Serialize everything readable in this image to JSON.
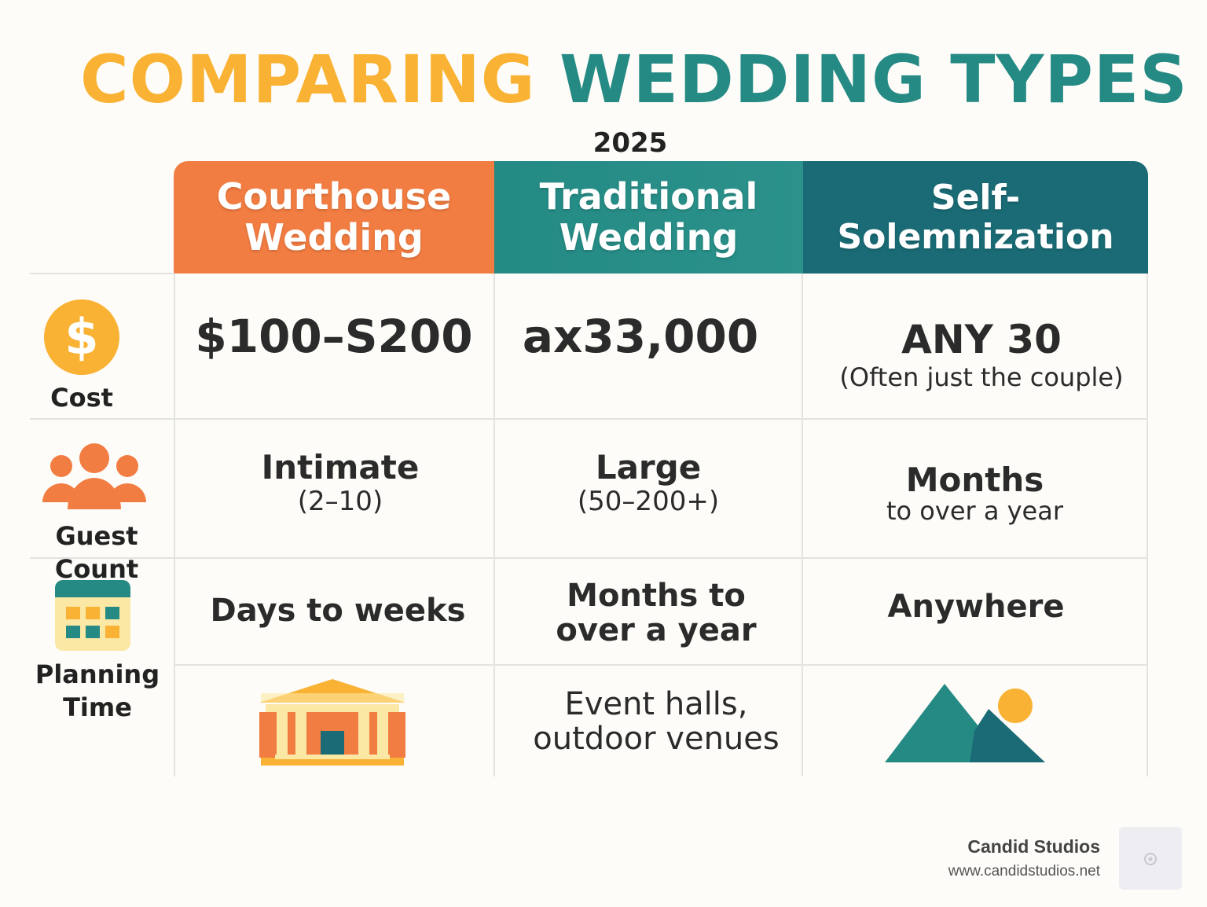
{
  "title": {
    "part1": "COMPARING",
    "part2": "WEDDING TYPES"
  },
  "year": "2025",
  "columns": [
    {
      "label_line1": "Courthouse",
      "label_line2": "Wedding"
    },
    {
      "label_line1": "Traditional",
      "label_line2": "Wedding"
    },
    {
      "label_line1": "Self-Solemnization",
      "label_line2": ""
    }
  ],
  "rows": {
    "cost": {
      "label": "Cost",
      "courthouse": "$100–S200",
      "traditional": "ax33,000",
      "self_main": "ANY 30",
      "self_sub": "(Often just the couple)"
    },
    "guests": {
      "label": "Guest Count",
      "courthouse_main": "Intimate",
      "courthouse_sub": "(2–10)",
      "traditional_main": "Large",
      "traditional_sub": "(50–200+)",
      "self_main": "Months",
      "self_sub": "to over a year"
    },
    "planning": {
      "label_line1": "Planning",
      "label_line2": "Time",
      "courthouse": "Days to weeks",
      "traditional_line1": "Months to",
      "traditional_line2": "over a year",
      "self": "Anywhere"
    },
    "venue": {
      "traditional_line1": "Event halls,",
      "traditional_line2": "outdoor venues"
    }
  },
  "icons": {
    "cost": "dollar-coin-icon",
    "guests": "people-group-icon",
    "planning": "calendar-icon",
    "courthouse": "courthouse-building-icon",
    "self": "mountains-sun-icon"
  },
  "colors": {
    "orange": "#f27d42",
    "yellow": "#f9b233",
    "teal": "#268a84",
    "dark_teal": "#1a6b75"
  },
  "footer": {
    "name": "Candid Studios",
    "url": "www.candidstudios.net"
  }
}
